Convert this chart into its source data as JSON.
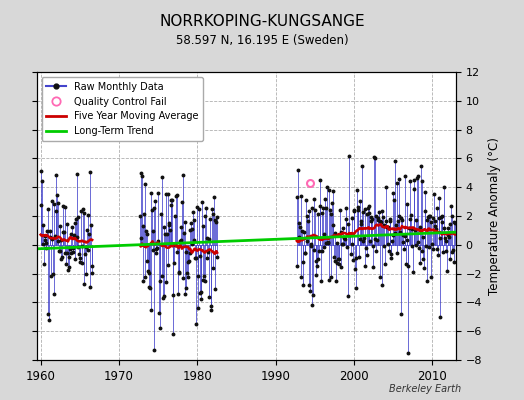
{
  "title": "NORRKOPING-KUNGSANGE",
  "subtitle": "58.597 N, 16.195 E (Sweden)",
  "ylabel": "Temperature Anomaly (°C)",
  "xlabel_credit": "Berkeley Earth",
  "ylim": [
    -8,
    12
  ],
  "xlim": [
    1959.5,
    2013
  ],
  "xticks": [
    1960,
    1970,
    1980,
    1990,
    2000,
    2010
  ],
  "yticks": [
    -8,
    -6,
    -4,
    -2,
    0,
    2,
    4,
    6,
    8,
    10,
    12
  ],
  "bg_color": "#d8d8d8",
  "plot_bg_color": "#ffffff",
  "grid_color": "#b0b0b0",
  "raw_line_color": "#4444cc",
  "raw_dot_color": "#111111",
  "qc_fail_color": "#ff69b4",
  "moving_avg_color": "#cc0000",
  "trend_color": "#00cc00",
  "qc_fail_x": 1994.4,
  "qc_fail_y": 4.3,
  "trend_x0": 1959.5,
  "trend_x1": 2013.0,
  "trend_y0": -0.28,
  "trend_y1": 0.88,
  "seg1_start": 1960.0,
  "seg1_end": 1966.6,
  "seg2_start": 1972.7,
  "seg2_end": 1982.6,
  "seg3_start": 1992.7,
  "seg3_end": 2012.9
}
